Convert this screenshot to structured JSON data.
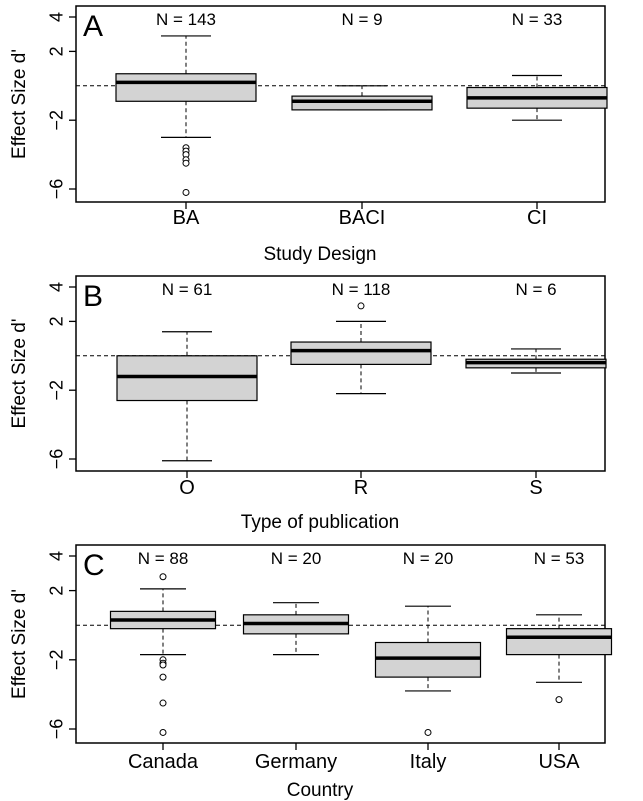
{
  "chart_data": [
    {
      "type": "box",
      "panel_label": "A",
      "xlabel": "Study Design",
      "ylabel": "Effect Size d'",
      "ylim": [
        -6.3,
        4.2
      ],
      "yticks": [
        4,
        2,
        -2,
        -6
      ],
      "reference_line": 0,
      "categories": [
        "BA",
        "BACI",
        "CI"
      ],
      "n_labels": [
        "N = 143",
        "N = 9",
        "N = 33"
      ],
      "boxes": [
        {
          "whisker_low": -3.0,
          "q1": -0.9,
          "median": 0.2,
          "q3": 0.7,
          "whisker_high": 2.9,
          "outliers": [
            -3.6,
            -3.8,
            -4.0,
            -4.3,
            -4.5,
            -6.2
          ]
        },
        {
          "whisker_low": -1.4,
          "q1": -1.4,
          "median": -0.9,
          "q3": -0.6,
          "whisker_high": 0.0,
          "outliers": []
        },
        {
          "whisker_low": -2.0,
          "q1": -1.3,
          "median": -0.7,
          "q3": -0.1,
          "whisker_high": 0.6,
          "outliers": []
        }
      ]
    },
    {
      "type": "box",
      "panel_label": "B",
      "xlabel": "Type of publication",
      "ylabel": "Effect Size d'",
      "ylim": [
        -6.3,
        4.2
      ],
      "yticks": [
        4,
        2,
        -2,
        -6
      ],
      "reference_line": 0,
      "categories": [
        "O",
        "R",
        "S"
      ],
      "n_labels": [
        "N = 61",
        "N = 118",
        "N = 6"
      ],
      "boxes": [
        {
          "whisker_low": -6.1,
          "q1": -2.6,
          "median": -1.2,
          "q3": 0.0,
          "whisker_high": 1.4,
          "outliers": []
        },
        {
          "whisker_low": -2.2,
          "q1": -0.5,
          "median": 0.3,
          "q3": 0.8,
          "whisker_high": 2.0,
          "outliers": [
            2.9
          ]
        },
        {
          "whisker_low": -1.0,
          "q1": -0.7,
          "median": -0.4,
          "q3": -0.2,
          "whisker_high": 0.4,
          "outliers": []
        }
      ]
    },
    {
      "type": "box",
      "panel_label": "C",
      "xlabel": "Country",
      "ylabel": "Effect Size d'",
      "ylim": [
        -6.3,
        4.2
      ],
      "yticks": [
        4,
        2,
        -2,
        -6
      ],
      "reference_line": 0,
      "categories": [
        "Canada",
        "Germany",
        "Italy",
        "USA"
      ],
      "n_labels": [
        "N = 88",
        "N = 20",
        "N = 20",
        "N = 53"
      ],
      "boxes": [
        {
          "whisker_low": -1.7,
          "q1": -0.2,
          "median": 0.3,
          "q3": 0.8,
          "whisker_high": 2.1,
          "outliers": [
            2.8,
            -2.0,
            -2.2,
            -2.3,
            -3.0,
            -4.5,
            -6.2
          ]
        },
        {
          "whisker_low": -1.7,
          "q1": -0.5,
          "median": 0.1,
          "q3": 0.6,
          "whisker_high": 1.3,
          "outliers": []
        },
        {
          "whisker_low": -3.8,
          "q1": -3.0,
          "median": -1.9,
          "q3": -1.0,
          "whisker_high": 1.1,
          "outliers": [
            -6.2
          ]
        },
        {
          "whisker_low": -3.3,
          "q1": -1.7,
          "median": -0.7,
          "q3": -0.2,
          "whisker_high": 0.6,
          "outliers": [
            -4.3
          ]
        }
      ]
    }
  ]
}
